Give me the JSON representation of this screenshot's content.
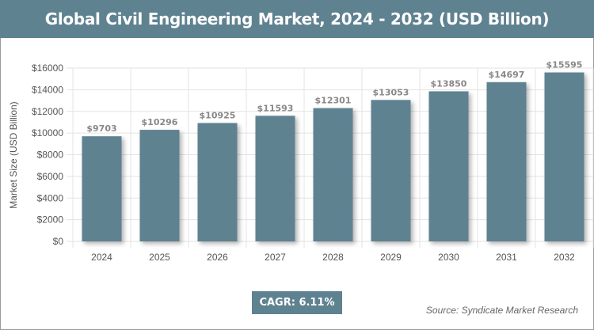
{
  "title": "Global Civil Engineering Market, 2024 - 2032 (USD Billion)",
  "cagr_label": "CAGR: 6.11%",
  "source": "Source: Syndicate Market Research",
  "colors": {
    "header": "#5f8291",
    "bar": "#5f8291"
  },
  "chart_data": {
    "type": "bar",
    "title": "Global Civil Engineering Market, 2024 - 2032 (USD Billion)",
    "xlabel": "",
    "ylabel": "Market Size (USD Billion)",
    "categories": [
      "2024",
      "2025",
      "2026",
      "2027",
      "2028",
      "2029",
      "2030",
      "2031",
      "2032"
    ],
    "values": [
      9703,
      10296,
      10925,
      11593,
      12301,
      13053,
      13850,
      14697,
      15595
    ],
    "data_labels": [
      "$9703",
      "$10296",
      "$10925",
      "$11593",
      "$12301",
      "$13053",
      "$13850",
      "$14697",
      "$15595"
    ],
    "ylim": [
      0,
      16000
    ],
    "yticks": [
      0,
      2000,
      4000,
      6000,
      8000,
      10000,
      12000,
      14000,
      16000
    ],
    "ytick_labels": [
      "$0",
      "$2000",
      "$4000",
      "$6000",
      "$8000",
      "$10000",
      "$12000",
      "$14000",
      "$16000"
    ],
    "grid": true
  }
}
